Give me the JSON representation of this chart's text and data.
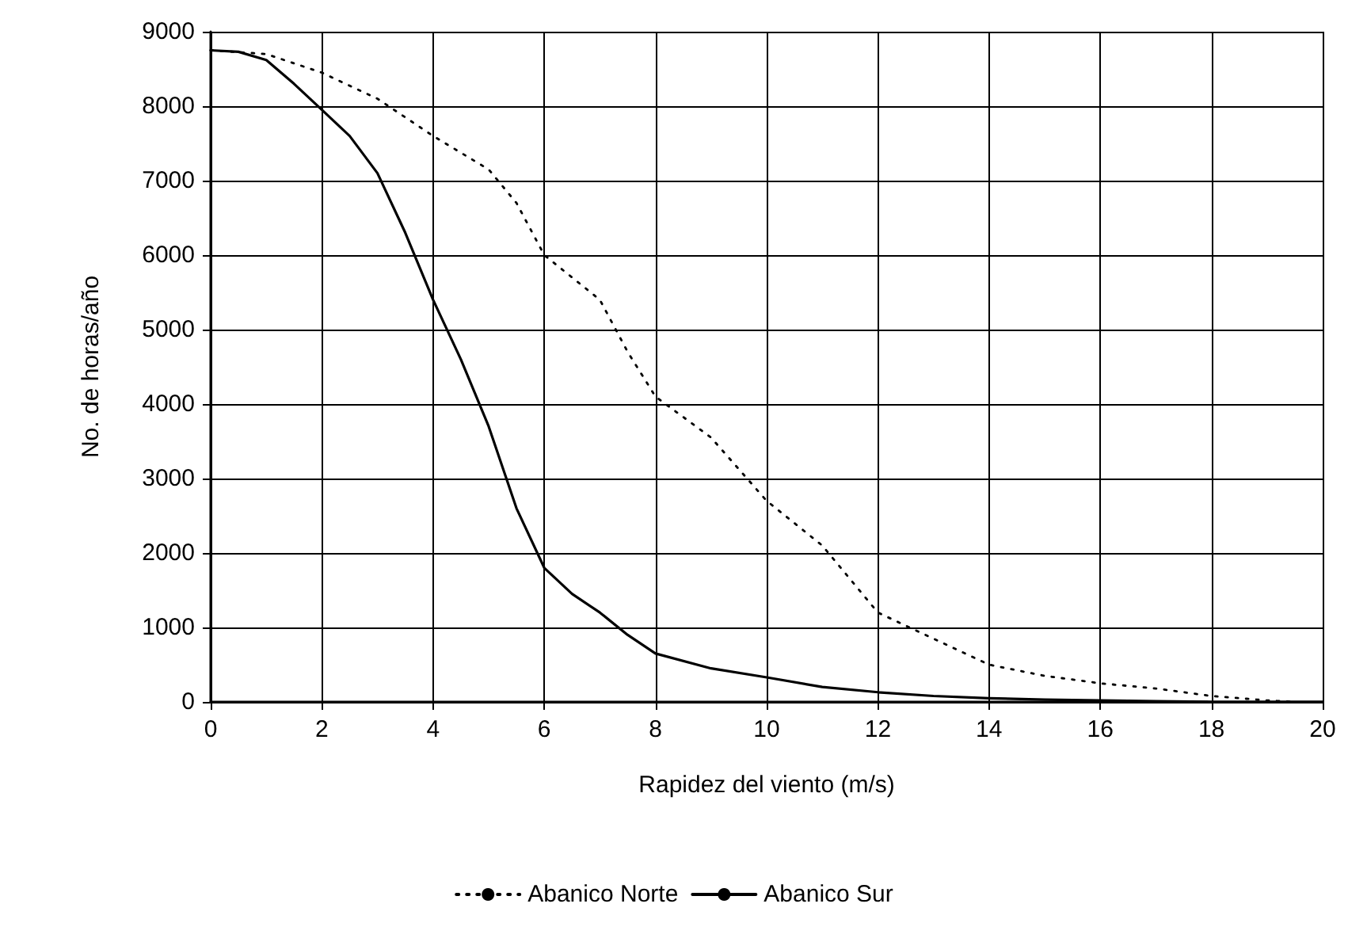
{
  "chart_data": {
    "type": "line",
    "xlabel": "Rapidez del viento (m/s)",
    "ylabel": "No. de horas/año",
    "xlim": [
      0,
      20
    ],
    "xticks": [
      0,
      2,
      4,
      6,
      8,
      10,
      12,
      14,
      16,
      18,
      20
    ],
    "ylim": [
      0,
      9000
    ],
    "yticks": [
      0,
      1000,
      2000,
      3000,
      4000,
      5000,
      6000,
      7000,
      8000,
      9000
    ],
    "grid": true,
    "legend": "bottom",
    "marker": "none",
    "series": [
      {
        "name": "Abanico Norte",
        "color": "#000000",
        "line_style": "dotted",
        "x": [
          0,
          1,
          2,
          3,
          4,
          5,
          5.5,
          6,
          7,
          7.5,
          8,
          9,
          10,
          11,
          12,
          13,
          14,
          15,
          16,
          17,
          18,
          19,
          19.5
        ],
        "values": [
          8750,
          8700,
          8450,
          8100,
          7600,
          7150,
          6700,
          6000,
          5400,
          4700,
          4100,
          3550,
          2700,
          2100,
          1200,
          850,
          500,
          350,
          250,
          180,
          80,
          20,
          0
        ]
      },
      {
        "name": "Abanico Sur",
        "color": "#000000",
        "line_style": "solid",
        "x": [
          0,
          0.5,
          1,
          1.5,
          2,
          2.5,
          3,
          3.5,
          4,
          4.5,
          5,
          5.5,
          6,
          6.5,
          7,
          7.5,
          8,
          9,
          10,
          11,
          12,
          13,
          14,
          15,
          16,
          17,
          18,
          20
        ],
        "values": [
          8750,
          8730,
          8620,
          8300,
          7950,
          7600,
          7100,
          6300,
          5400,
          4600,
          3700,
          2600,
          1800,
          1450,
          1200,
          900,
          650,
          450,
          330,
          200,
          130,
          80,
          50,
          30,
          20,
          10,
          0,
          0
        ]
      }
    ]
  }
}
